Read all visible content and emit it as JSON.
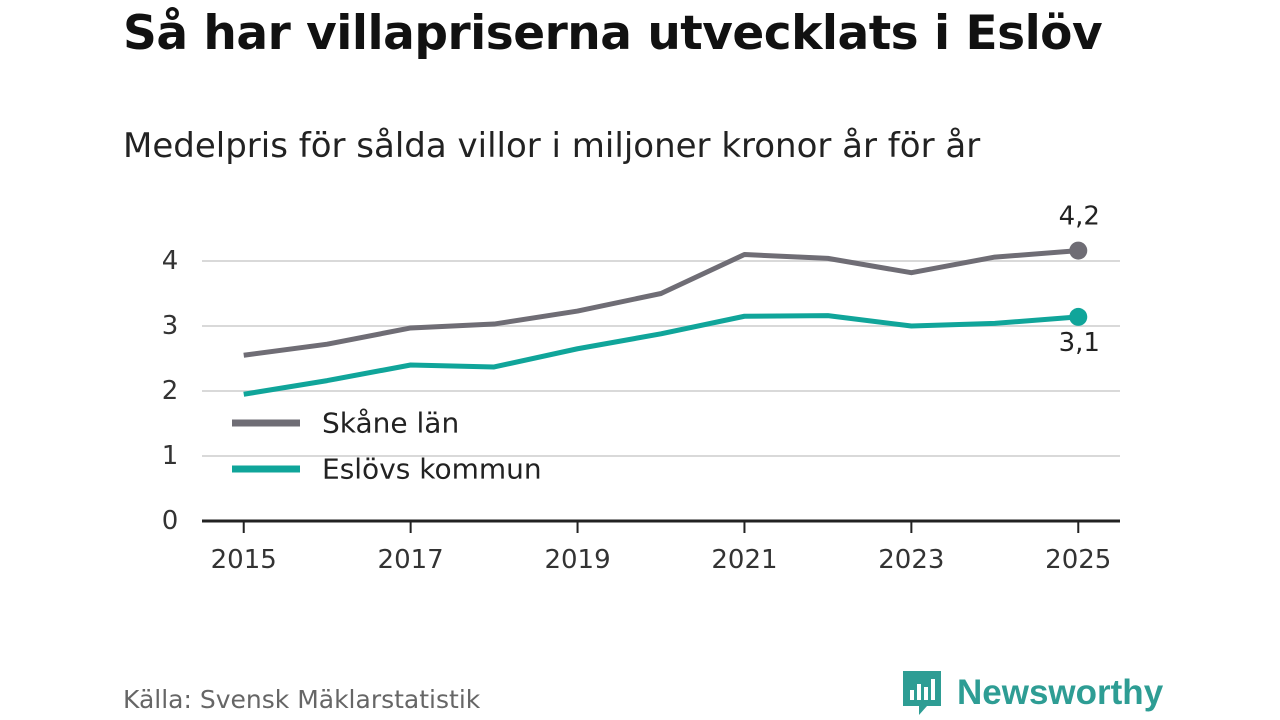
{
  "title": "Så har villapriserna utvecklats i Eslöv",
  "subtitle": "Medelpris för sålda villor i miljoner kronor år för år",
  "source": "Källa: Svensk Mäklarstatistik",
  "brand": {
    "name": "Newsworthy",
    "icon": "newsworthy-logo-icon"
  },
  "colors": {
    "skane": "#6f6d75",
    "eslov": "#10a59a",
    "grid": "#d9d9d9",
    "axis": "#222222",
    "text": "#333333",
    "brand": "#2e9d94"
  },
  "chart_data": {
    "type": "line",
    "title": "Så har villapriserna utvecklats i Eslöv",
    "subtitle": "Medelpris för sålda villor i miljoner kronor år för år",
    "xlabel": "",
    "ylabel": "",
    "x": [
      2015,
      2016,
      2017,
      2018,
      2019,
      2020,
      2021,
      2022,
      2023,
      2024,
      2025
    ],
    "xticks": [
      2015,
      2017,
      2019,
      2021,
      2023,
      2025
    ],
    "xtick_labels": [
      "2015",
      "2017",
      "2019",
      "2021",
      "2023",
      "2025"
    ],
    "yticks": [
      0,
      1,
      2,
      3,
      4
    ],
    "ytick_labels": [
      "0",
      "1",
      "2",
      "3",
      "4"
    ],
    "ylim": [
      0,
      4.5
    ],
    "xlim": [
      2014.5,
      2025.5
    ],
    "grid": true,
    "legend_position": "lower-left",
    "series": [
      {
        "name": "Skåne län",
        "color": "#6f6d75",
        "values": [
          2.55,
          2.72,
          2.97,
          3.03,
          3.23,
          3.5,
          4.1,
          4.04,
          3.82,
          4.06,
          4.16
        ],
        "end_label": "4,2",
        "end_label_position": "above"
      },
      {
        "name": "Eslövs kommun",
        "color": "#10a59a",
        "values": [
          1.95,
          2.16,
          2.4,
          2.37,
          2.65,
          2.88,
          3.15,
          3.16,
          3.0,
          3.04,
          3.14
        ],
        "end_label": "3,1",
        "end_label_position": "below"
      }
    ]
  }
}
